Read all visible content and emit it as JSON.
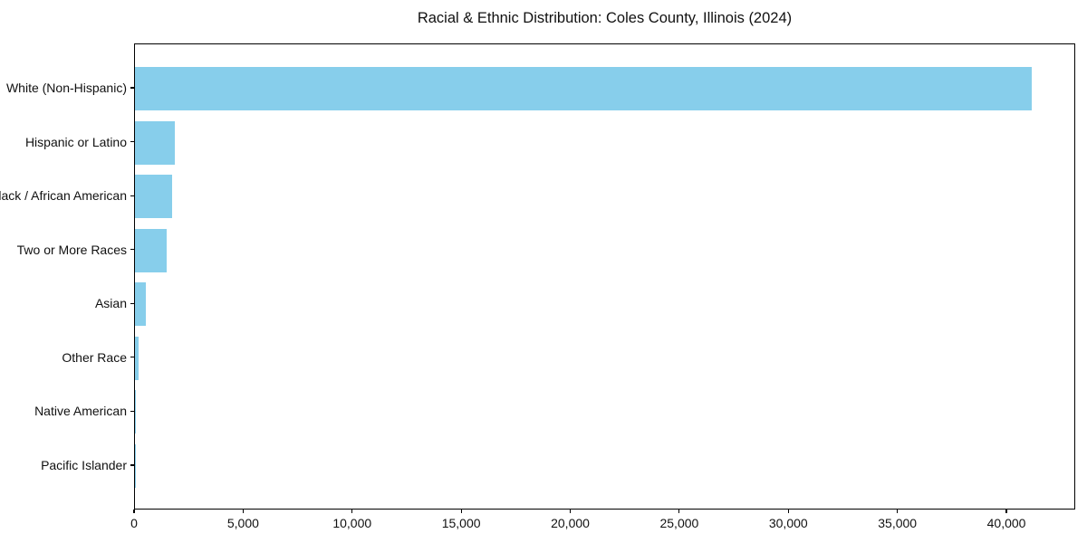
{
  "chart_data": {
    "type": "bar",
    "orientation": "horizontal",
    "title": "Racial & Ethnic Distribution: Coles County, Illinois (2024)",
    "categories": [
      "White (Non-Hispanic)",
      "Hispanic or Latino",
      "Black / African American",
      "Two or More Races",
      "Asian",
      "Other Race",
      "Native American",
      "Pacific Islander"
    ],
    "values": [
      41100,
      1810,
      1690,
      1460,
      510,
      180,
      35,
      12
    ],
    "xlabel": "",
    "ylabel": "",
    "xlim": [
      0,
      43155
    ],
    "x_ticks": [
      0,
      5000,
      10000,
      15000,
      20000,
      25000,
      30000,
      35000,
      40000
    ],
    "x_tick_labels": [
      "0",
      "5,000",
      "10,000",
      "15,000",
      "20,000",
      "25,000",
      "30,000",
      "35,000",
      "40,000"
    ],
    "grid": false,
    "legend": null,
    "bar_color": "#87CEEB",
    "spine_color": "#000000",
    "background_color": "#ffffff"
  }
}
